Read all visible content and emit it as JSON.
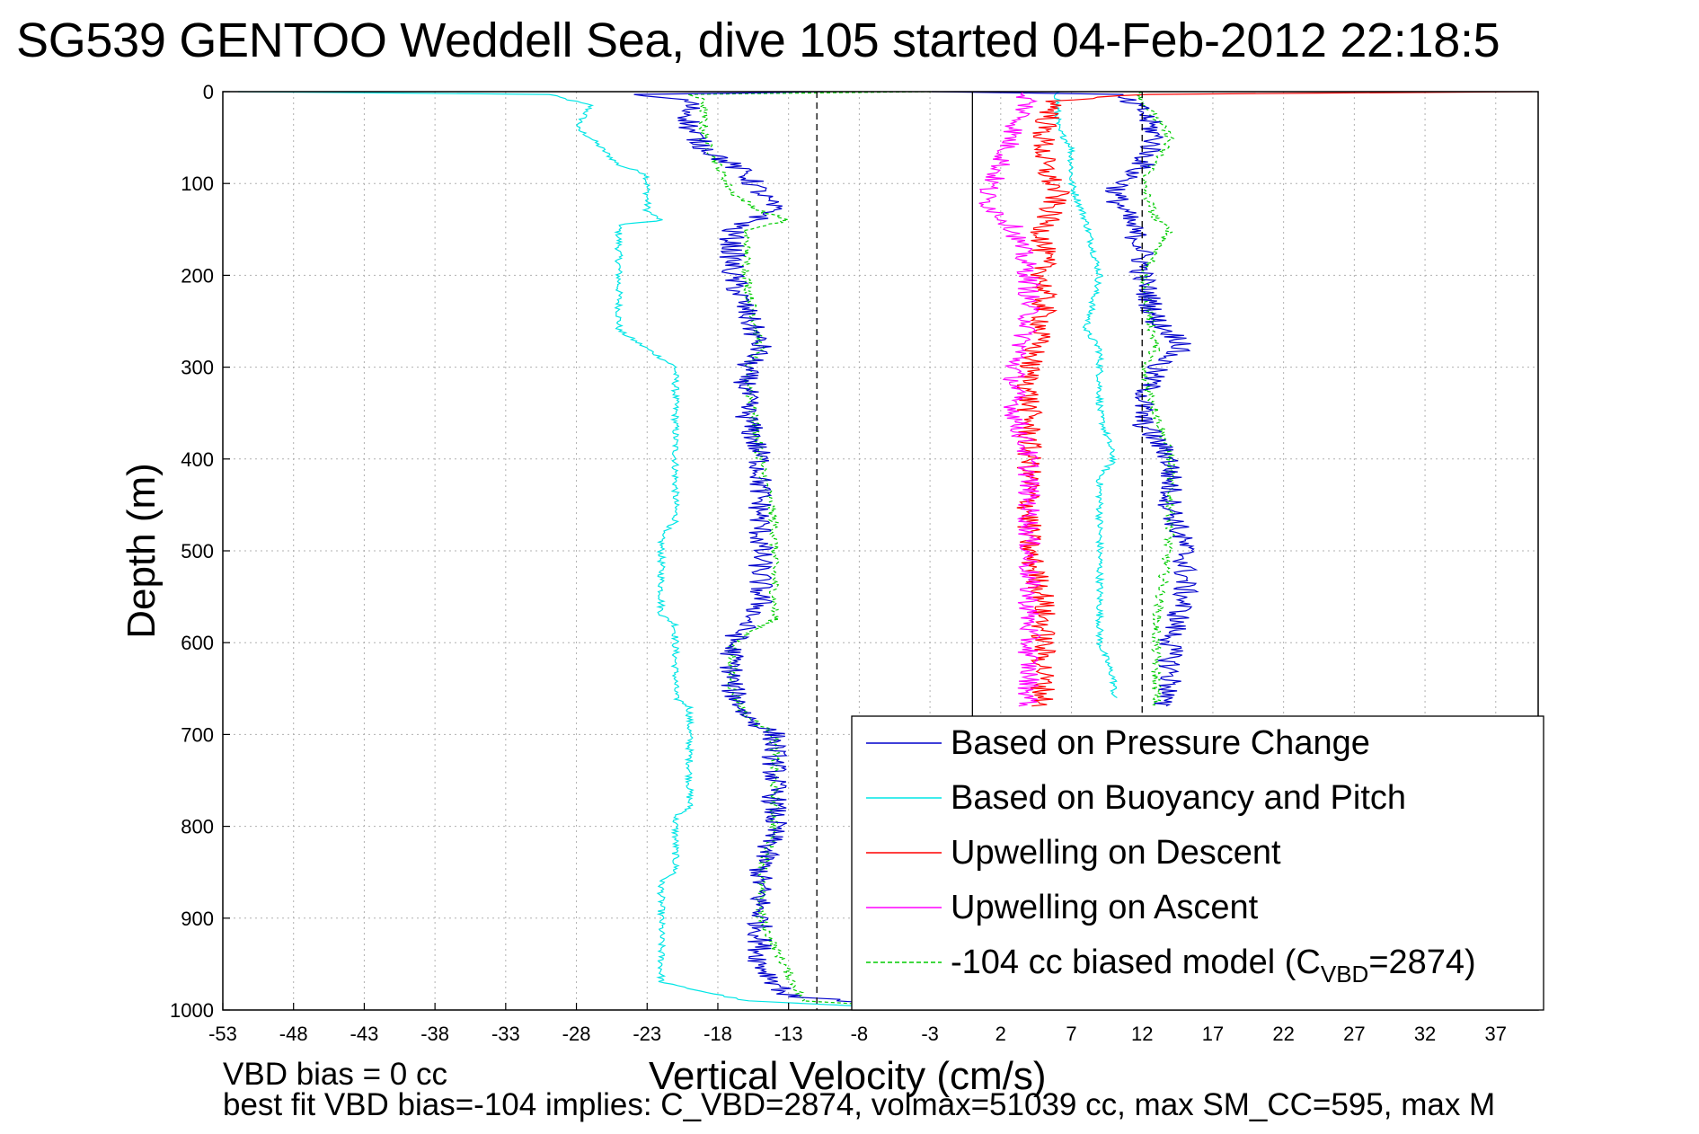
{
  "title": "SG539 GENTOO Weddell Sea, dive 105 started 04-Feb-2012 22:18:5",
  "footer": {
    "line1": "VBD bias = 0 cc",
    "line2": "best fit VBD bias=-104 implies: C_VBD=2874, volmax=51039 cc, max SM_CC=595, max M"
  },
  "colors": {
    "pressure": "#0000cc",
    "buoyancy": "#00e5e5",
    "descent": "#ff0000",
    "ascent": "#ff00ff",
    "model": "#00cc00",
    "grid": "#b0b0b0"
  },
  "chart_data": {
    "type": "line",
    "title": "SG539 GENTOO Weddell Sea, dive 105 started 04-Feb-2012 22:18:5",
    "xlabel": "Vertical Velocity (cm/s)",
    "ylabel": "Depth (m)",
    "xlim": [
      -53,
      40
    ],
    "ylim": [
      1000,
      0
    ],
    "y_reversed": true,
    "grid": true,
    "xticks": [
      -53,
      -48,
      -43,
      -38,
      -33,
      -28,
      -23,
      -18,
      -13,
      -8,
      -3,
      2,
      7,
      12,
      17,
      22,
      27,
      32,
      37
    ],
    "yticks": [
      0,
      100,
      200,
      300,
      400,
      500,
      600,
      700,
      800,
      900,
      1000
    ],
    "reference_lines": [
      {
        "x": -11,
        "style": "dashed"
      },
      {
        "x": 0,
        "style": "solid"
      },
      {
        "x": 12,
        "style": "dashed"
      }
    ],
    "legend": {
      "position": "bottom-right",
      "entries": [
        {
          "label": "Based on Pressure Change",
          "color": "#0000cc",
          "style": "solid"
        },
        {
          "label": "Based on Buoyancy and Pitch",
          "color": "#00e5e5",
          "style": "solid"
        },
        {
          "label": "Upwelling on Descent",
          "color": "#ff0000",
          "style": "solid"
        },
        {
          "label": "Upwelling on Ascent",
          "color": "#ff00ff",
          "style": "solid"
        },
        {
          "label": "-104 cc biased model (C",
          "sub": "VBD",
          "suffix": "=2874)",
          "color": "#00cc00",
          "style": "dashed"
        }
      ]
    },
    "series": [
      {
        "name": "Based on Pressure Change",
        "color": "#0000cc",
        "noise": 0.9,
        "depth": [
          0,
          3,
          10,
          40,
          60,
          90,
          110,
          130,
          150,
          200,
          240,
          280,
          300,
          350,
          400,
          450,
          500,
          560,
          600,
          650,
          680,
          700,
          750,
          800,
          850,
          900,
          950,
          985,
          995,
          999
        ],
        "velocity": [
          -10,
          -24,
          -20,
          -20,
          -19,
          -16,
          -15,
          -14,
          -17,
          -17,
          -16,
          -15,
          -16,
          -16,
          -15,
          -15,
          -15,
          -15,
          -17,
          -17,
          -16,
          -14,
          -14,
          -14,
          -15,
          -15,
          -15,
          -13,
          -5,
          -3
        ],
        "depth2": [
          0,
          3,
          20,
          50,
          80,
          110,
          140,
          170,
          200,
          250,
          275,
          300,
          340,
          360,
          400,
          450,
          500,
          550,
          600,
          650,
          670
        ],
        "velocity2": [
          -3,
          10,
          12,
          13,
          12,
          10,
          11,
          12,
          12,
          13,
          15,
          13,
          12,
          12,
          14,
          14,
          15,
          15,
          14,
          14,
          13
        ]
      },
      {
        "name": "Based on Buoyancy and Pitch",
        "color": "#00e5e5",
        "noise": 0.25,
        "depth": [
          0,
          3,
          15,
          40,
          50,
          80,
          90,
          130,
          140,
          145,
          260,
          270,
          300,
          350,
          400,
          470,
          480,
          570,
          580,
          660,
          670,
          780,
          790,
          850,
          860,
          970,
          990,
          998
        ],
        "velocity": [
          -52,
          -30,
          -27,
          -28,
          -27,
          -25,
          -23,
          -23,
          -22,
          -25,
          -25,
          -24,
          -21,
          -21,
          -21,
          -21,
          -22,
          -22,
          -21,
          -21,
          -20,
          -20,
          -21,
          -21,
          -22,
          -22,
          -16,
          -5
        ],
        "depth2": [
          0,
          40,
          60,
          100,
          140,
          200,
          260,
          280,
          350,
          400,
          420,
          480,
          500,
          580,
          600,
          640,
          660
        ],
        "velocity2": [
          6,
          6,
          7,
          7,
          8,
          9,
          8,
          9,
          9,
          10,
          9,
          9,
          9,
          9,
          9,
          10,
          10
        ]
      },
      {
        "name": "Upwelling on Descent",
        "color": "#ff0000",
        "noise": 0.9,
        "depth": [
          0,
          3,
          10,
          40,
          80,
          110,
          150,
          200,
          250,
          300,
          350,
          400,
          450,
          500,
          550,
          600,
          650,
          670
        ],
        "velocity": [
          40,
          12,
          6,
          5,
          5,
          6,
          5,
          5,
          5,
          4,
          4,
          4,
          4,
          4,
          5,
          5,
          5,
          5
        ]
      },
      {
        "name": "Upwelling on Ascent",
        "color": "#ff00ff",
        "noise": 0.8,
        "depth": [
          0,
          10,
          40,
          80,
          110,
          120,
          150,
          200,
          250,
          300,
          350,
          400,
          450,
          500,
          550,
          600,
          650,
          670
        ],
        "velocity": [
          3,
          4,
          3,
          2,
          1,
          1,
          3,
          4,
          4,
          3,
          3,
          4,
          4,
          4,
          4,
          4,
          4,
          4
        ]
      },
      {
        "name": "-104 cc biased model (CVBD=2874)",
        "color": "#00cc00",
        "dashed": true,
        "noise": 0.35,
        "depth": [
          0,
          3,
          10,
          50,
          80,
          110,
          130,
          140,
          150,
          200,
          280,
          300,
          400,
          470,
          480,
          575,
          600,
          650,
          680,
          700,
          800,
          860,
          900,
          990,
          998
        ],
        "velocity": [
          -3,
          -20,
          -19,
          -19,
          -18,
          -17,
          -15,
          -13,
          -16,
          -16,
          -15,
          -16,
          -15,
          -14,
          -14,
          -14,
          -17,
          -17,
          -16,
          -14,
          -14,
          -15,
          -15,
          -12,
          -3
        ],
        "depth2": [
          0,
          10,
          50,
          100,
          140,
          150,
          200,
          280,
          300,
          400,
          480,
          580,
          600,
          650,
          670
        ],
        "velocity2": [
          12,
          12,
          14,
          12,
          13,
          14,
          12,
          13,
          12,
          14,
          14,
          13,
          13,
          13,
          13
        ]
      }
    ]
  }
}
